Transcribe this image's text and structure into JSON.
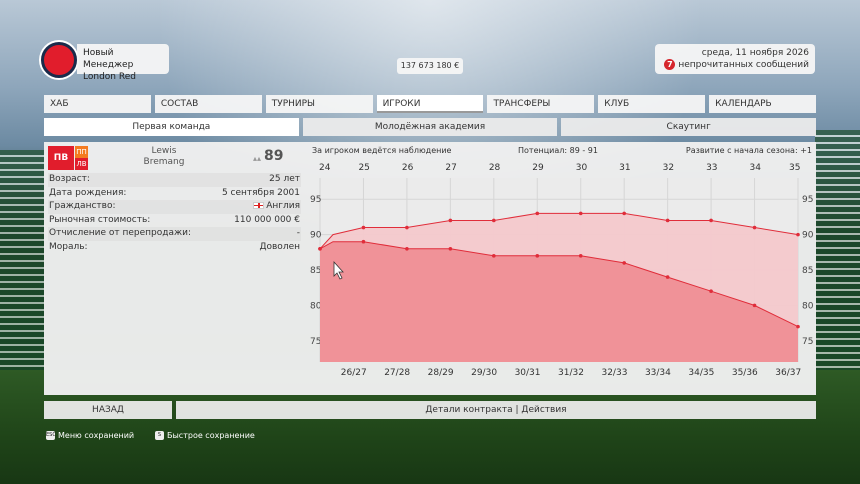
{
  "header": {
    "manager_label": "Новый Менеджер",
    "club_name": "London Red",
    "balance": "137 673 180 €",
    "date": "среда, 11 ноября 2026",
    "unread_count": "7",
    "unread_label": "непрочитанных сообщений",
    "colors": {
      "club": "#e11d2c",
      "club_ring": "#1b2b4b"
    }
  },
  "nav": {
    "tabs": [
      {
        "label": "ХАБ"
      },
      {
        "label": "СОСТАВ"
      },
      {
        "label": "ТУРНИРЫ"
      },
      {
        "label": "ИГРОКИ"
      },
      {
        "label": "ТРАНСФЕРЫ"
      },
      {
        "label": "КЛУБ"
      },
      {
        "label": "КАЛЕНДАРЬ"
      }
    ],
    "active": "ИГРОКИ"
  },
  "subnav": {
    "tabs": [
      {
        "label": "Первая команда"
      },
      {
        "label": "Молодёжная академия"
      },
      {
        "label": "Скаутинг"
      }
    ],
    "active": "Первая команда"
  },
  "player": {
    "position_main": "ПВ",
    "position_alt1": "ПП",
    "position_alt2": "ЛВ",
    "first_name": "Lewis",
    "last_name": "Bremang",
    "rating": "89",
    "info": [
      {
        "label": "Возраст:",
        "value": "25 лет"
      },
      {
        "label": "Дата рождения:",
        "value": "5 сентября 2001"
      },
      {
        "label": "Гражданство:",
        "value": "Англия"
      },
      {
        "label": "Рыночная стоимость:",
        "value": "110 000 000 €"
      },
      {
        "label": "Отчисление от перепродажи:",
        "value": "-"
      },
      {
        "label": "Мораль:",
        "value": "Доволен"
      }
    ],
    "colors": {
      "position_main": "#e11d2c",
      "position_alt1": "#f47b20",
      "position_alt2": "#e11d2c"
    }
  },
  "chart_header": {
    "watch": "За игроком ведётся наблюдение",
    "potential": "Потенциал: 89 - 91",
    "progress": "Развитие с начала сезона: +1"
  },
  "chart_data": {
    "type": "area",
    "x_top_ages": [
      "24",
      "25",
      "26",
      "27",
      "28",
      "29",
      "30",
      "31",
      "32",
      "33",
      "34",
      "35"
    ],
    "categories": [
      "26/27",
      "27/28",
      "28/29",
      "29/30",
      "30/31",
      "31/32",
      "32/33",
      "33/34",
      "34/35",
      "35/36",
      "36/37"
    ],
    "x": [
      24,
      25,
      26,
      27,
      28,
      29,
      30,
      31,
      32,
      33,
      34,
      35
    ],
    "series": [
      {
        "values": [
          88,
          91,
          91,
          92,
          92,
          93,
          93,
          93,
          92,
          92,
          91,
          90
        ]
      },
      {
        "values": [
          88,
          89,
          88,
          88,
          87,
          87,
          87,
          86,
          84,
          82,
          80,
          77
        ]
      }
    ],
    "x_start": 24,
    "x_dense": [
      24,
      24.3,
      25,
      26,
      27,
      28,
      29,
      30,
      31,
      32,
      33,
      34,
      35
    ],
    "upper_dense": [
      88,
      90,
      91,
      91,
      92,
      92,
      93,
      93,
      93,
      92,
      92,
      91,
      90
    ],
    "lower_dense": [
      88,
      89,
      89,
      88,
      88,
      87,
      87,
      87,
      86,
      84,
      82,
      80,
      77
    ],
    "yticks": [
      75,
      80,
      85,
      90,
      95
    ],
    "ylim": [
      72,
      98
    ],
    "grid": true,
    "colors": {
      "upper_fill": "#f4c9cc",
      "lower_fill": "#ef8e95",
      "line": "#e02d3a"
    }
  },
  "footer": {
    "back_label": "НАЗАД",
    "contract_label": "Детали контракта | Действия",
    "hint_save_menu_key": "ESC",
    "hint_save_menu": "Меню сохранений",
    "hint_quicksave_key": "S",
    "hint_quicksave": "Быстрое сохранение"
  }
}
